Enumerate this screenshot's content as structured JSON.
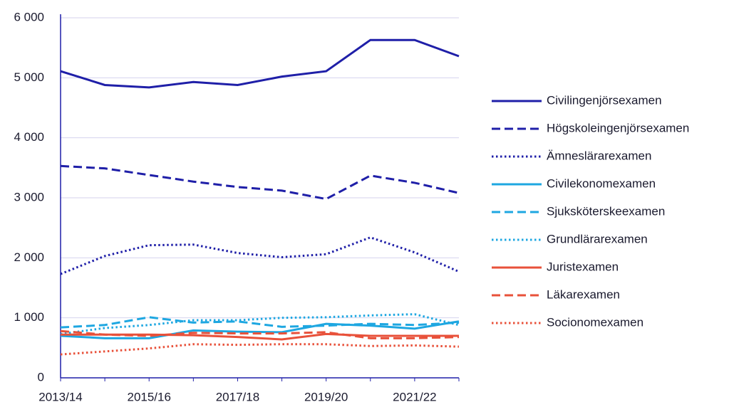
{
  "chart_data": {
    "type": "line",
    "categories": [
      "2013/14",
      null,
      "2015/16",
      null,
      "2017/18",
      null,
      "2019/20",
      null,
      "2021/22",
      null
    ],
    "ylim": [
      0,
      6000
    ],
    "yticks": [
      0,
      {
        "value": 1000,
        "label": "1 000"
      },
      {
        "value": 2000,
        "label": "2 000"
      },
      {
        "value": 3000,
        "label": "3 000"
      },
      {
        "value": 4000,
        "label": "4 000"
      },
      {
        "value": 5000,
        "label": "5 000"
      },
      {
        "value": 6000,
        "label": "6 000"
      }
    ],
    "grid": true,
    "legend": "right",
    "series": [
      {
        "name": "Civilingenjörsexamen",
        "color": "#1f1fa8",
        "style": "solid",
        "values": [
          5110,
          4880,
          4840,
          4930,
          4880,
          5020,
          5110,
          5630,
          5630,
          5360
        ]
      },
      {
        "name": "Högskoleingenjörsexamen",
        "color": "#1f1fa8",
        "style": "dashed",
        "values": [
          3530,
          3490,
          3380,
          3270,
          3180,
          3120,
          2980,
          3370,
          3250,
          3080
        ]
      },
      {
        "name": "Ämneslärarexamen",
        "color": "#1f1fa8",
        "style": "dotted",
        "values": [
          1730,
          2030,
          2210,
          2220,
          2080,
          2010,
          2060,
          2340,
          2090,
          1770
        ]
      },
      {
        "name": "Civilekonomexamen",
        "color": "#1ea7e1",
        "style": "solid",
        "values": [
          700,
          660,
          660,
          790,
          770,
          760,
          900,
          870,
          820,
          940
        ]
      },
      {
        "name": "Sjuksköterskeexamen",
        "color": "#1ea7e1",
        "style": "dashed",
        "values": [
          840,
          880,
          1010,
          920,
          940,
          850,
          870,
          900,
          880,
          920
        ]
      },
      {
        "name": "Grundlärarexamen",
        "color": "#1ea7e1",
        "style": "dotted",
        "values": [
          730,
          830,
          880,
          960,
          960,
          1000,
          1010,
          1040,
          1060,
          880
        ]
      },
      {
        "name": "Juristexamen",
        "color": "#e8513a",
        "style": "solid",
        "values": [
          720,
          720,
          720,
          710,
          680,
          640,
          730,
          700,
          700,
          700
        ]
      },
      {
        "name": "Läkarexamen",
        "color": "#e8513a",
        "style": "dashed",
        "values": [
          780,
          720,
          700,
          750,
          740,
          740,
          760,
          660,
          660,
          680
        ]
      },
      {
        "name": "Socionomexamen",
        "color": "#e8513a",
        "style": "dotted",
        "values": [
          390,
          440,
          490,
          560,
          550,
          560,
          560,
          530,
          540,
          520
        ]
      }
    ]
  }
}
